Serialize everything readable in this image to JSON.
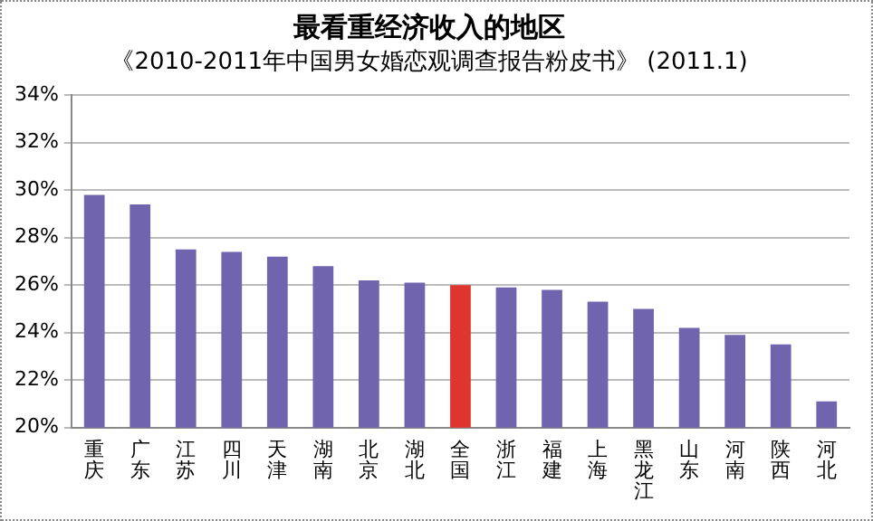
{
  "chart_data": {
    "type": "bar",
    "title": "最看重经济收入的地区",
    "subtitle": "《2010-2011年中国男女婚恋观调查报告粉皮书》 (2011.1)",
    "categories": [
      "重庆",
      "广东",
      "江苏",
      "四川",
      "天津",
      "湖南",
      "北京",
      "湖北",
      "全国",
      "浙江",
      "福建",
      "上海",
      "黑龙江",
      "山东",
      "河南",
      "陕西",
      "河北"
    ],
    "values": [
      29.8,
      29.4,
      27.5,
      27.4,
      27.2,
      26.8,
      26.2,
      26.1,
      26.0,
      25.9,
      25.8,
      25.3,
      25.0,
      24.2,
      23.9,
      23.5,
      21.1
    ],
    "colors": [
      "#7064ae",
      "#7064ae",
      "#7064ae",
      "#7064ae",
      "#7064ae",
      "#7064ae",
      "#7064ae",
      "#7064ae",
      "#e0352f",
      "#7064ae",
      "#7064ae",
      "#7064ae",
      "#7064ae",
      "#7064ae",
      "#7064ae",
      "#7064ae",
      "#7064ae"
    ],
    "ylim": [
      20,
      34
    ],
    "yticks": [
      {
        "value": 20,
        "label": "20%"
      },
      {
        "value": 22,
        "label": "22%"
      },
      {
        "value": 24,
        "label": "24%"
      },
      {
        "value": 26,
        "label": "26%"
      },
      {
        "value": 28,
        "label": "28%"
      },
      {
        "value": 30,
        "label": "30%"
      },
      {
        "value": 32,
        "label": "32%"
      },
      {
        "value": 34,
        "label": "34%"
      }
    ],
    "grid": "y",
    "legend": false
  }
}
